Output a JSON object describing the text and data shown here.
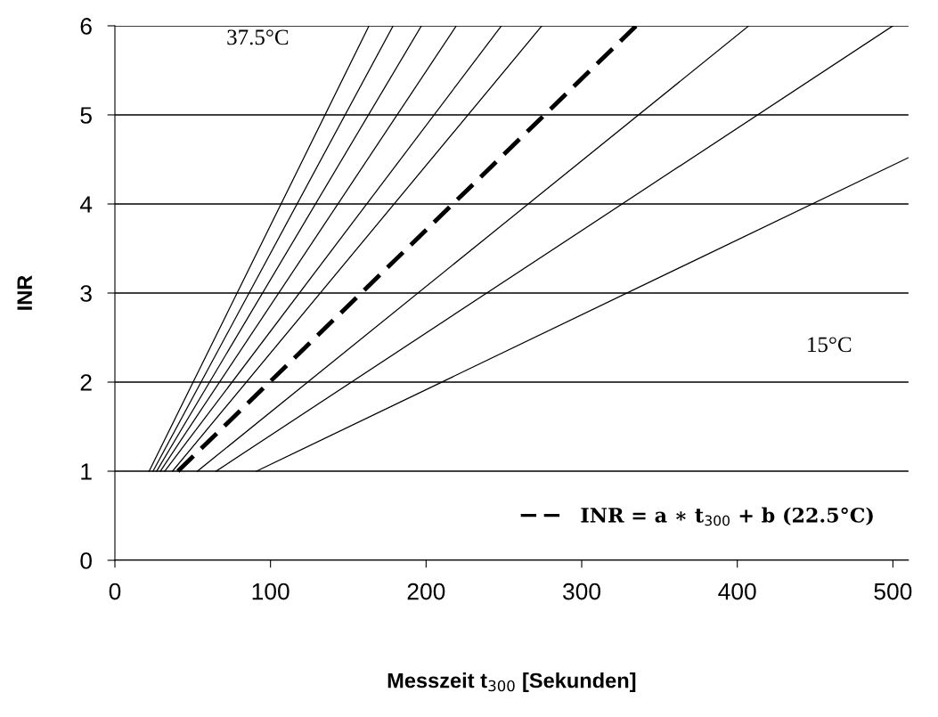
{
  "chart_data": {
    "type": "line",
    "xlabel": "Messzeit t$_{300}$ [Sekunden]",
    "ylabel": "INR",
    "xlim": [
      0,
      510
    ],
    "xticks": [
      0,
      100,
      200,
      300,
      400,
      500
    ],
    "ylim": [
      0,
      6
    ],
    "yticks": [
      0,
      1,
      2,
      3,
      4,
      5,
      6
    ],
    "grid": "y",
    "legend": "bottom right",
    "marker": "none",
    "series": [
      {
        "color": "#000000",
        "line_style": "solid",
        "x": [
          22,
          163.3
        ],
        "values": [
          1,
          6
        ]
      },
      {
        "color": "#000000",
        "line_style": "solid",
        "x": [
          24.5,
          178.8
        ],
        "values": [
          1,
          6
        ]
      },
      {
        "color": "#000000",
        "line_style": "solid",
        "x": [
          26.8,
          197
        ],
        "values": [
          1,
          6
        ]
      },
      {
        "color": "#000000",
        "line_style": "solid",
        "x": [
          29.2,
          219.4
        ],
        "values": [
          1,
          6
        ]
      },
      {
        "color": "#000000",
        "line_style": "solid",
        "x": [
          32,
          248.4
        ],
        "values": [
          1,
          6
        ]
      },
      {
        "color": "#000000",
        "line_style": "solid",
        "x": [
          37,
          274.4
        ],
        "values": [
          1,
          6
        ]
      },
      {
        "name": "INR = a ∗ t$_{300}$ + b (22.5°C)",
        "color": "#000000",
        "line_style": "dashed",
        "x": [
          40.5,
          335
        ],
        "values": [
          1,
          6
        ]
      },
      {
        "color": "#000000",
        "line_style": "solid",
        "x": [
          53,
          407.4
        ],
        "values": [
          1,
          6
        ]
      },
      {
        "color": "#000000",
        "line_style": "solid",
        "x": [
          65,
          500
        ],
        "values": [
          1,
          6
        ]
      },
      {
        "color": "#000000",
        "line_style": "solid",
        "x": [
          91,
          510
        ],
        "values": [
          1,
          4.52
        ]
      }
    ],
    "annotations": [
      "37.5°C",
      "15°C"
    ]
  }
}
